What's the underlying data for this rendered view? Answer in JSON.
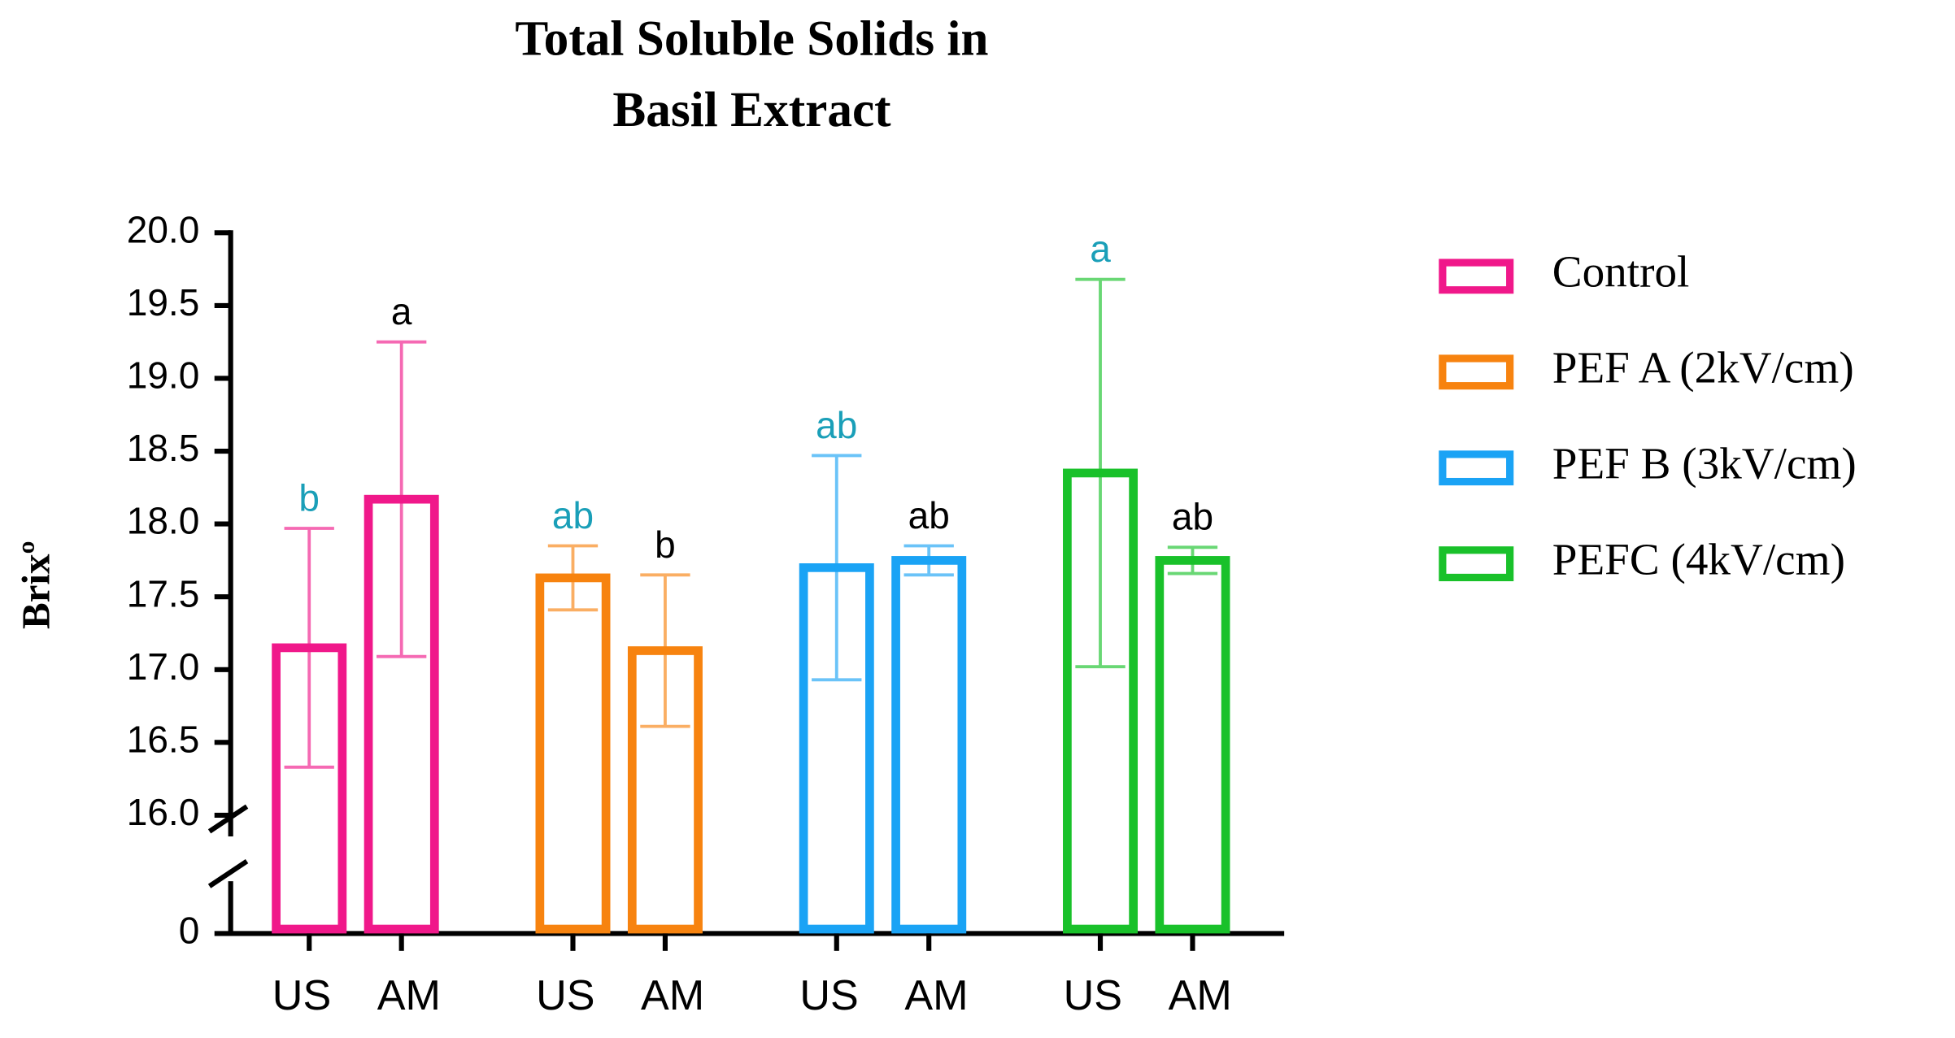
{
  "chart_data": {
    "type": "bar",
    "title": [
      "Total  Soluble Solids in",
      "Basil Extract"
    ],
    "y_label": "Brixº",
    "categories": [
      "US",
      "AM"
    ],
    "series": [
      {
        "name": "Control",
        "color": "#f0188a",
        "values": [
          17.15,
          18.17
        ],
        "errors": [
          0.82,
          1.08
        ],
        "letters": [
          "b",
          "a"
        ]
      },
      {
        "name": "PEF A (2kV/cm)",
        "color": "#f7830f",
        "values": [
          17.63,
          17.13
        ],
        "errors": [
          0.22,
          0.52
        ],
        "letters": [
          "ab",
          "b"
        ]
      },
      {
        "name": "PEF B (3kV/cm)",
        "color": "#1aa3f5",
        "values": [
          17.7,
          17.75
        ],
        "errors": [
          0.77,
          0.1
        ],
        "letters": [
          "ab",
          "ab"
        ]
      },
      {
        "name": "PEFC (4kV/cm)",
        "color": "#19c12a",
        "values": [
          18.35,
          17.75
        ],
        "errors": [
          1.33,
          0.09
        ],
        "letters": [
          "a",
          "ab"
        ]
      }
    ],
    "letter_colors": [
      "#1a9fb8",
      "#000000"
    ],
    "ylim": [
      0,
      20
    ],
    "ybreak": 16,
    "yticks": [
      0,
      {
        "value": 16,
        "label": "16.0"
      },
      16.5,
      {
        "value": 17,
        "label": "17.0"
      },
      17.5,
      {
        "value": 18,
        "label": "18.0"
      },
      18.5,
      {
        "value": 19,
        "label": "19.0"
      },
      19.5,
      {
        "value": 20,
        "label": "20.0"
      }
    ],
    "legend": "right"
  }
}
